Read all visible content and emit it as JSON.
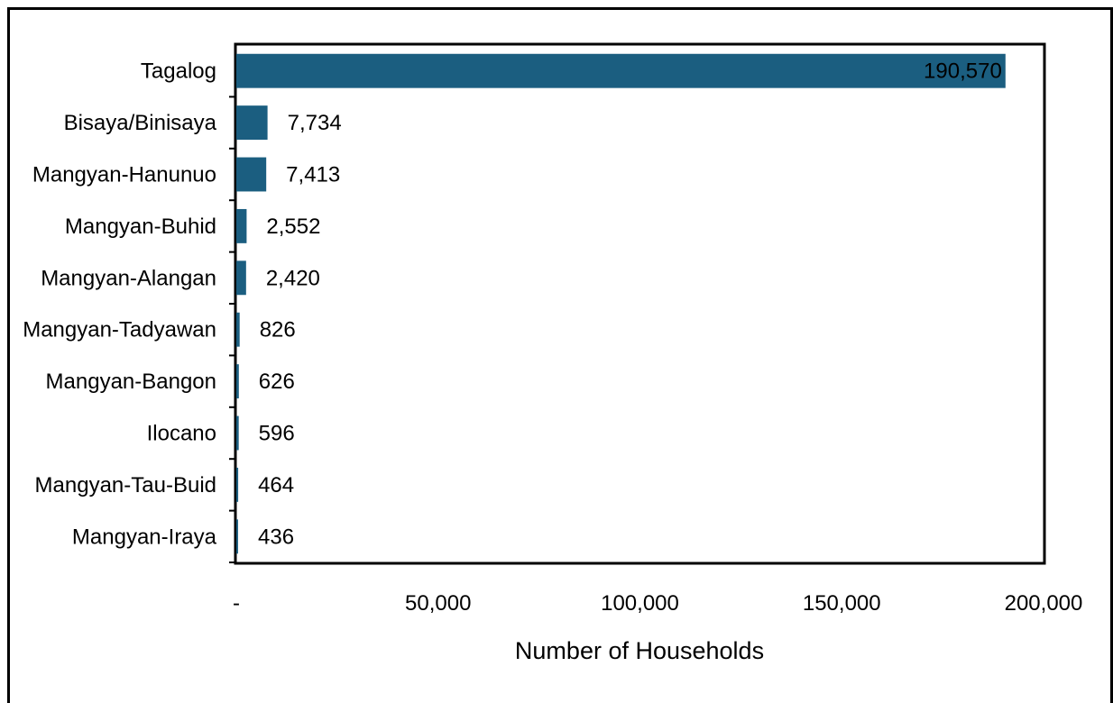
{
  "chart_data": {
    "type": "bar",
    "orientation": "horizontal",
    "categories": [
      "Tagalog",
      "Bisaya/Binisaya",
      "Mangyan-Hanunuo",
      "Mangyan-Buhid",
      "Mangyan-Alangan",
      "Mangyan-Tadyawan",
      "Mangyan-Bangon",
      "Ilocano",
      "Mangyan-Tau-Buid",
      "Mangyan-Iraya"
    ],
    "values": [
      190570,
      7734,
      7413,
      2552,
      2420,
      826,
      626,
      596,
      464,
      436
    ],
    "value_labels": [
      "190,570",
      "7,734",
      "7,413",
      "2,552",
      "2,420",
      "826",
      "626",
      "596",
      "464",
      "436"
    ],
    "xlabel": "Number of Households",
    "ylabel": "",
    "xlim": [
      0,
      200000
    ],
    "x_ticks": [
      0,
      50000,
      100000,
      150000,
      200000
    ],
    "x_tick_labels": [
      "-",
      "50,000",
      "100,000",
      "150,000",
      "200,000"
    ],
    "bar_color": "#1b5e80",
    "grid": false,
    "legend": "none"
  }
}
